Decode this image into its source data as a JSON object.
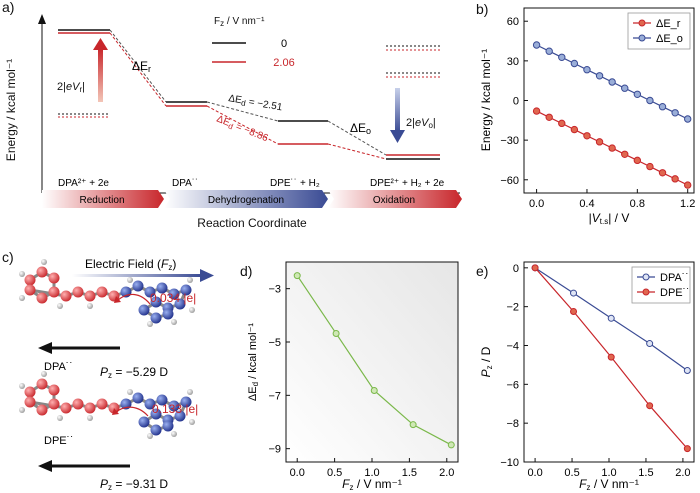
{
  "colors": {
    "red": "#c8262b",
    "blue": "#3a4b94",
    "green": "#7ab84a",
    "black": "#111111",
    "redFill": "#e0674f",
    "blueFill": "#9aaed8"
  },
  "panels": {
    "a": {
      "label": "a)",
      "ylabel": "Energy / kcal mol⁻¹",
      "xlabel": "Reaction Coordinate",
      "legend_title": "F_z / V nm⁻¹",
      "legend_entries": [
        {
          "label": "0",
          "color": "#111111"
        },
        {
          "label": "2.06",
          "color": "#c8262b"
        }
      ],
      "annotations": {
        "dEr": "ΔE_r",
        "dEd_0": "ΔE_d = −2.51",
        "dEd_206": "ΔE_d = −8.86",
        "dEo": "ΔE_o",
        "eVr": "2|eV_r|",
        "eVo": "2|eV_o|"
      },
      "species": [
        "DPA²⁺ + 2e",
        "DPA˙˙",
        "DPE˙˙ + H₂",
        "DPE²⁺ + H₂ + 2e"
      ],
      "stages": [
        "Reduction",
        "Dehydrogenation",
        "Oxidation"
      ]
    },
    "b": {
      "label": "b)"
    },
    "c": {
      "label": "c)",
      "field_label": "Electric Field (F_z)",
      "charge_top": "0.034 |e|",
      "charge_bottom": "0.133 |e|",
      "mol_top": "DPA˙˙",
      "mol_bottom": "DPE˙˙",
      "pz_top": "P_z = −5.29 D",
      "pz_bottom": "P_z = −9.31 D"
    },
    "d": {
      "label": "d)"
    },
    "e": {
      "label": "e)"
    }
  },
  "chart_data": [
    {
      "panel": "b",
      "type": "line",
      "xlabel": "|V_t.s| / V",
      "ylabel": "Energy / kcal mol⁻¹",
      "xlim": [
        -0.1,
        1.25
      ],
      "ylim": [
        -70,
        70
      ],
      "xticks": [
        0.0,
        0.4,
        0.8,
        1.2
      ],
      "yticks": [
        -60,
        -30,
        0,
        30,
        60
      ],
      "legend": "top-right",
      "series": [
        {
          "name": "ΔE_r",
          "color": "#c8262b",
          "x": [
            0,
            0.1,
            0.2,
            0.3,
            0.4,
            0.5,
            0.6,
            0.7,
            0.8,
            0.9,
            1.0,
            1.1,
            1.2
          ],
          "values": [
            -8,
            -12.7,
            -17.3,
            -22,
            -26.7,
            -31.3,
            -36,
            -40.7,
            -45.3,
            -50,
            -54.7,
            -59.3,
            -64
          ]
        },
        {
          "name": "ΔE_o",
          "color": "#3a4b94",
          "x": [
            0,
            0.1,
            0.2,
            0.3,
            0.4,
            0.5,
            0.6,
            0.7,
            0.8,
            0.9,
            1.0,
            1.1,
            1.2
          ],
          "values": [
            42,
            37.3,
            32.7,
            28,
            23.3,
            18.7,
            14,
            9.3,
            4.7,
            0,
            -4.7,
            -9.3,
            -14
          ]
        }
      ]
    },
    {
      "panel": "d",
      "type": "line",
      "xlabel": "F_z / V nm⁻¹",
      "ylabel": "ΔE_d / kcal mol⁻¹",
      "xlim": [
        -0.15,
        2.15
      ],
      "ylim": [
        -9.5,
        -2
      ],
      "xticks": [
        0.0,
        0.5,
        1.0,
        1.5,
        2.0
      ],
      "yticks": [
        -3,
        -5,
        -7,
        -9
      ],
      "series": [
        {
          "color": "#7ab84a",
          "x": [
            0,
            0.52,
            1.03,
            1.55,
            2.06
          ],
          "values": [
            -2.51,
            -4.68,
            -6.82,
            -8.1,
            -8.86
          ]
        }
      ]
    },
    {
      "panel": "e",
      "type": "line",
      "xlabel": "F_z / V nm⁻¹",
      "ylabel": "P_z / D",
      "xlim": [
        -0.15,
        2.15
      ],
      "ylim": [
        -10,
        0.3
      ],
      "xticks": [
        0.0,
        0.5,
        1.0,
        1.5,
        2.0
      ],
      "yticks": [
        0,
        -2,
        -4,
        -6,
        -8,
        -10
      ],
      "legend": "top-right",
      "series": [
        {
          "name": "DPA˙˙",
          "color": "#3a4b94",
          "x": [
            0,
            0.52,
            1.03,
            1.55,
            2.06
          ],
          "values": [
            0,
            -1.3,
            -2.6,
            -3.9,
            -5.29
          ]
        },
        {
          "name": "DPE˙˙",
          "color": "#c8262b",
          "x": [
            0,
            0.52,
            1.03,
            1.55,
            2.06
          ],
          "values": [
            0,
            -2.25,
            -4.6,
            -7.1,
            -9.31
          ]
        }
      ]
    }
  ]
}
